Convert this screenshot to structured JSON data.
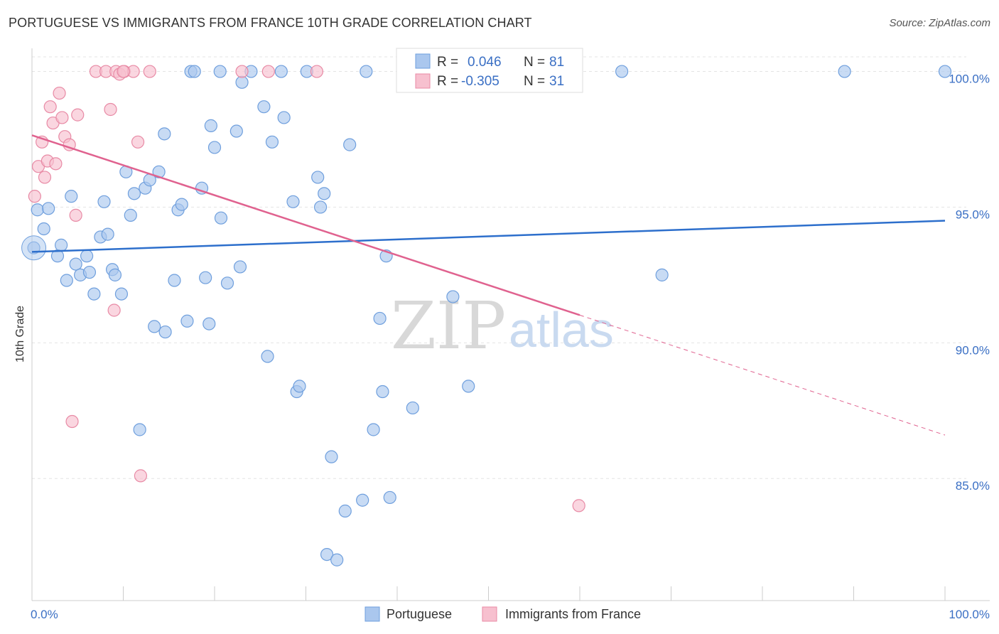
{
  "title": "PORTUGUESE VS IMMIGRANTS FROM FRANCE 10TH GRADE CORRELATION CHART",
  "source": "Source: ZipAtlas.com",
  "watermark": {
    "zip": "ZIP",
    "atlas": "atlas"
  },
  "legend": {
    "rows": [
      {
        "r_label": "R =",
        "r_value": "0.046",
        "n_label": "N =",
        "n_value": "81",
        "color": "#aac7ee",
        "stroke": "#6f9fdd"
      },
      {
        "r_label": "R =",
        "r_value": "-0.305",
        "n_label": "N =",
        "n_value": "31",
        "color": "#f7c0cf",
        "stroke": "#e88aa5"
      }
    ]
  },
  "chart_data": {
    "type": "scatter",
    "title": "PORTUGUESE VS IMMIGRANTS FROM FRANCE 10TH GRADE CORRELATION CHART",
    "xlabel": "",
    "ylabel": "10th Grade",
    "xlim": [
      0,
      100
    ],
    "ylim": [
      80.5,
      100.8
    ],
    "y_ticks": [
      85,
      90,
      95,
      100
    ],
    "y_tick_labels": [
      "85.0%",
      "90.0%",
      "95.0%",
      "100.0%"
    ],
    "x_tick_labels": [
      "0.0%",
      "100.0%"
    ],
    "grid": true,
    "legend_position": "top-center",
    "bottom_legend": [
      "Portuguese",
      "Immigrants from France"
    ],
    "series": [
      {
        "name": "Portuguese",
        "color": "#aac7ee",
        "stroke": "#6f9fdd",
        "line_color": "#2d6fcc",
        "trend": {
          "x": [
            0,
            100
          ],
          "y": [
            93.35,
            94.5
          ]
        },
        "points": [
          [
            0.2,
            93.5
          ],
          [
            0.6,
            94.9
          ],
          [
            1.3,
            94.2
          ],
          [
            1.8,
            94.95
          ],
          [
            3.2,
            93.6
          ],
          [
            2.8,
            93.2
          ],
          [
            3.8,
            92.3
          ],
          [
            4.3,
            95.4
          ],
          [
            4.8,
            92.9
          ],
          [
            5.3,
            92.5
          ],
          [
            6.0,
            93.2
          ],
          [
            6.3,
            92.6
          ],
          [
            6.8,
            91.8
          ],
          [
            7.5,
            93.9
          ],
          [
            7.9,
            95.2
          ],
          [
            8.3,
            94.0
          ],
          [
            8.8,
            92.7
          ],
          [
            9.1,
            92.5
          ],
          [
            9.8,
            91.8
          ],
          [
            10.3,
            96.3
          ],
          [
            10.8,
            94.7
          ],
          [
            11.2,
            95.5
          ],
          [
            11.8,
            86.8
          ],
          [
            12.4,
            95.7
          ],
          [
            12.9,
            96.0
          ],
          [
            13.4,
            90.6
          ],
          [
            13.9,
            96.3
          ],
          [
            14.5,
            97.7
          ],
          [
            14.6,
            90.4
          ],
          [
            15.6,
            92.3
          ],
          [
            16.0,
            94.9
          ],
          [
            16.4,
            95.1
          ],
          [
            17.0,
            90.8
          ],
          [
            17.4,
            100.0
          ],
          [
            17.8,
            100.0
          ],
          [
            18.6,
            95.7
          ],
          [
            19.0,
            92.4
          ],
          [
            19.4,
            90.7
          ],
          [
            19.6,
            98.0
          ],
          [
            20.0,
            97.2
          ],
          [
            20.7,
            94.6
          ],
          [
            21.4,
            92.2
          ],
          [
            22.4,
            97.8
          ],
          [
            22.8,
            92.8
          ],
          [
            23.0,
            99.6
          ],
          [
            24.0,
            100.0
          ],
          [
            25.4,
            98.7
          ],
          [
            25.8,
            89.5
          ],
          [
            26.3,
            97.4
          ],
          [
            27.3,
            100.0
          ],
          [
            27.6,
            98.3
          ],
          [
            28.6,
            95.2
          ],
          [
            29.0,
            88.2
          ],
          [
            29.3,
            88.4
          ],
          [
            30.1,
            100.0
          ],
          [
            31.3,
            96.1
          ],
          [
            31.6,
            95.0
          ],
          [
            32.0,
            95.5
          ],
          [
            32.3,
            82.2
          ],
          [
            32.8,
            85.8
          ],
          [
            33.4,
            82.0
          ],
          [
            34.3,
            83.8
          ],
          [
            34.8,
            97.3
          ],
          [
            36.2,
            84.2
          ],
          [
            36.6,
            100.0
          ],
          [
            37.4,
            86.8
          ],
          [
            38.1,
            90.9
          ],
          [
            38.4,
            88.2
          ],
          [
            38.8,
            93.2
          ],
          [
            39.2,
            84.3
          ],
          [
            41.7,
            87.6
          ],
          [
            44.3,
            100.0
          ],
          [
            46.1,
            91.7
          ],
          [
            47.8,
            88.4
          ],
          [
            51.0,
            100.0
          ],
          [
            64.6,
            100.0
          ],
          [
            69.0,
            92.5
          ],
          [
            89.0,
            100.0
          ],
          [
            100.0,
            100.0
          ],
          [
            20.6,
            100.0
          ],
          [
            46.5,
            100.0
          ]
        ]
      },
      {
        "name": "Immigrants from France",
        "color": "#f7c0cf",
        "stroke": "#e88aa5",
        "line_color": "#e0628f",
        "trend": {
          "x": [
            0,
            100
          ],
          "y": [
            97.65,
            86.6
          ]
        },
        "trend_solid_until_x": 60,
        "points": [
          [
            0.3,
            95.4
          ],
          [
            0.7,
            96.5
          ],
          [
            1.1,
            97.4
          ],
          [
            1.4,
            96.1
          ],
          [
            1.7,
            96.7
          ],
          [
            2.0,
            98.7
          ],
          [
            2.3,
            98.1
          ],
          [
            2.6,
            96.6
          ],
          [
            3.0,
            99.2
          ],
          [
            3.3,
            98.3
          ],
          [
            3.6,
            97.6
          ],
          [
            4.1,
            97.3
          ],
          [
            4.4,
            87.1
          ],
          [
            4.8,
            94.7
          ],
          [
            5.0,
            98.4
          ],
          [
            7.0,
            100.0
          ],
          [
            8.1,
            100.0
          ],
          [
            8.6,
            98.6
          ],
          [
            9.0,
            91.2
          ],
          [
            9.2,
            100.0
          ],
          [
            9.6,
            99.9
          ],
          [
            10.1,
            100.0
          ],
          [
            11.1,
            100.0
          ],
          [
            11.6,
            97.4
          ],
          [
            11.9,
            85.1
          ],
          [
            12.9,
            100.0
          ],
          [
            23.0,
            100.0
          ],
          [
            25.9,
            100.0
          ],
          [
            31.2,
            100.0
          ],
          [
            59.9,
            84.0
          ],
          [
            10.0,
            100.0
          ]
        ]
      }
    ]
  }
}
